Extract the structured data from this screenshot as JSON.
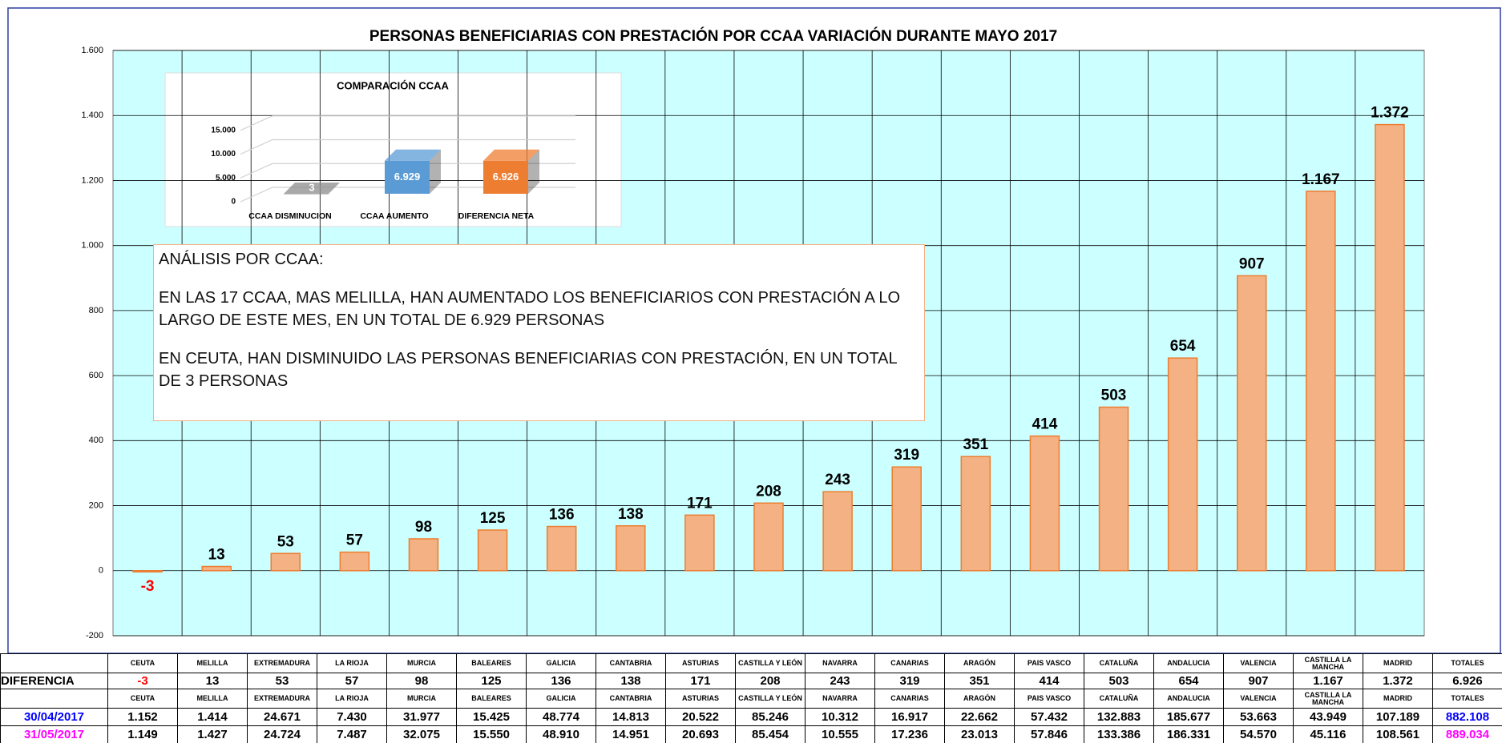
{
  "chart_data": [
    {
      "type": "bar",
      "title": "PERSONAS BENEFICIARIAS CON PRESTACIÓN POR CCAA VARIACIÓN DURANTE MAYO 2017",
      "categories": [
        "CEUTA",
        "MELILLA",
        "EXTREMADURA",
        "LA RIOJA",
        "MURCIA",
        "BALEARES",
        "GALICIA",
        "CANTABRIA",
        "ASTURIAS",
        "CASTILLA Y LEÓN",
        "NAVARRA",
        "CANARIAS",
        "ARAGÓN",
        "PAIS VASCO",
        "CATALUÑA",
        "ANDALUCIA",
        "VALENCIA",
        "CASTILLA LA MANCHA",
        "MADRID"
      ],
      "values": [
        -3,
        13,
        53,
        57,
        98,
        125,
        136,
        138,
        171,
        208,
        243,
        319,
        351,
        414,
        503,
        654,
        907,
        1167,
        1372
      ],
      "value_labels": [
        "-3",
        "13",
        "53",
        "57",
        "98",
        "125",
        "136",
        "138",
        "171",
        "208",
        "243",
        "319",
        "351",
        "414",
        "503",
        "654",
        "907",
        "1.167",
        "1.372"
      ],
      "color": "#f4b183",
      "negative_label_color": "#ff0000",
      "ylim": [
        -200,
        1600
      ],
      "yticks": [
        -200,
        0,
        200,
        400,
        600,
        800,
        {
          "value": 1000,
          "label": "1.000"
        },
        {
          "value": 1200,
          "label": "1.200"
        },
        {
          "value": 1400,
          "label": "1.400"
        },
        {
          "value": 1600,
          "label": "1.600"
        }
      ],
      "grid": true
    },
    {
      "type": "bar3d",
      "title": "COMPARACIÓN CCAA",
      "categories": [
        "CCAA DISMINUCION",
        "CCAA AUMENTO",
        "DIFERENCIA NETA"
      ],
      "values": [
        3,
        6929,
        6926
      ],
      "value_labels": [
        "3",
        "6.929",
        "6.926"
      ],
      "colors": [
        "#8c8c8c",
        "#5b9bd5",
        "#ed7d31"
      ],
      "ylim": [
        0,
        20000
      ],
      "yticks": [
        0,
        {
          "value": 5000,
          "label": "5.000"
        },
        {
          "value": 10000,
          "label": "10.000"
        },
        {
          "value": 15000,
          "label": "15.000"
        }
      ],
      "grid": true
    }
  ],
  "text_box": {
    "title": "ANÁLISIS POR CCAA:",
    "paragraphs": [
      "EN LAS 17 CCAA, MAS MELILLA, HAN AUMENTADO LOS BENEFICIARIOS CON PRESTACIÓN A LO LARGO DE ESTE MES, EN UN TOTAL DE  6.929 PERSONAS",
      "EN CEUTA, HAN DISMINUIDO LAS PERSONAS BENEFICIARIAS CON PRESTACIÓN, EN UN TOTAL DE 3 PERSONAS"
    ]
  },
  "table": {
    "totals_label": "TOTALES",
    "difference_label": "DIFERENCIA",
    "difference_total": "6.926",
    "rows": [
      {
        "label": "30/04/2017",
        "color": "#0000ff",
        "cells": [
          "1.152",
          "1.414",
          "24.671",
          "7.430",
          "31.977",
          "15.425",
          "48.774",
          "14.813",
          "20.522",
          "85.246",
          "10.312",
          "16.917",
          "22.662",
          "57.432",
          "132.883",
          "185.677",
          "53.663",
          "43.949",
          "107.189",
          "882.108"
        ]
      },
      {
        "label": "31/05/2017",
        "color": "#ff00ff",
        "cells": [
          "1.149",
          "1.427",
          "24.724",
          "7.487",
          "32.075",
          "15.550",
          "48.910",
          "14.951",
          "20.693",
          "85.454",
          "10.555",
          "17.236",
          "23.013",
          "57.846",
          "133.386",
          "186.331",
          "54.570",
          "45.116",
          "108.561",
          "889.034"
        ]
      }
    ]
  }
}
